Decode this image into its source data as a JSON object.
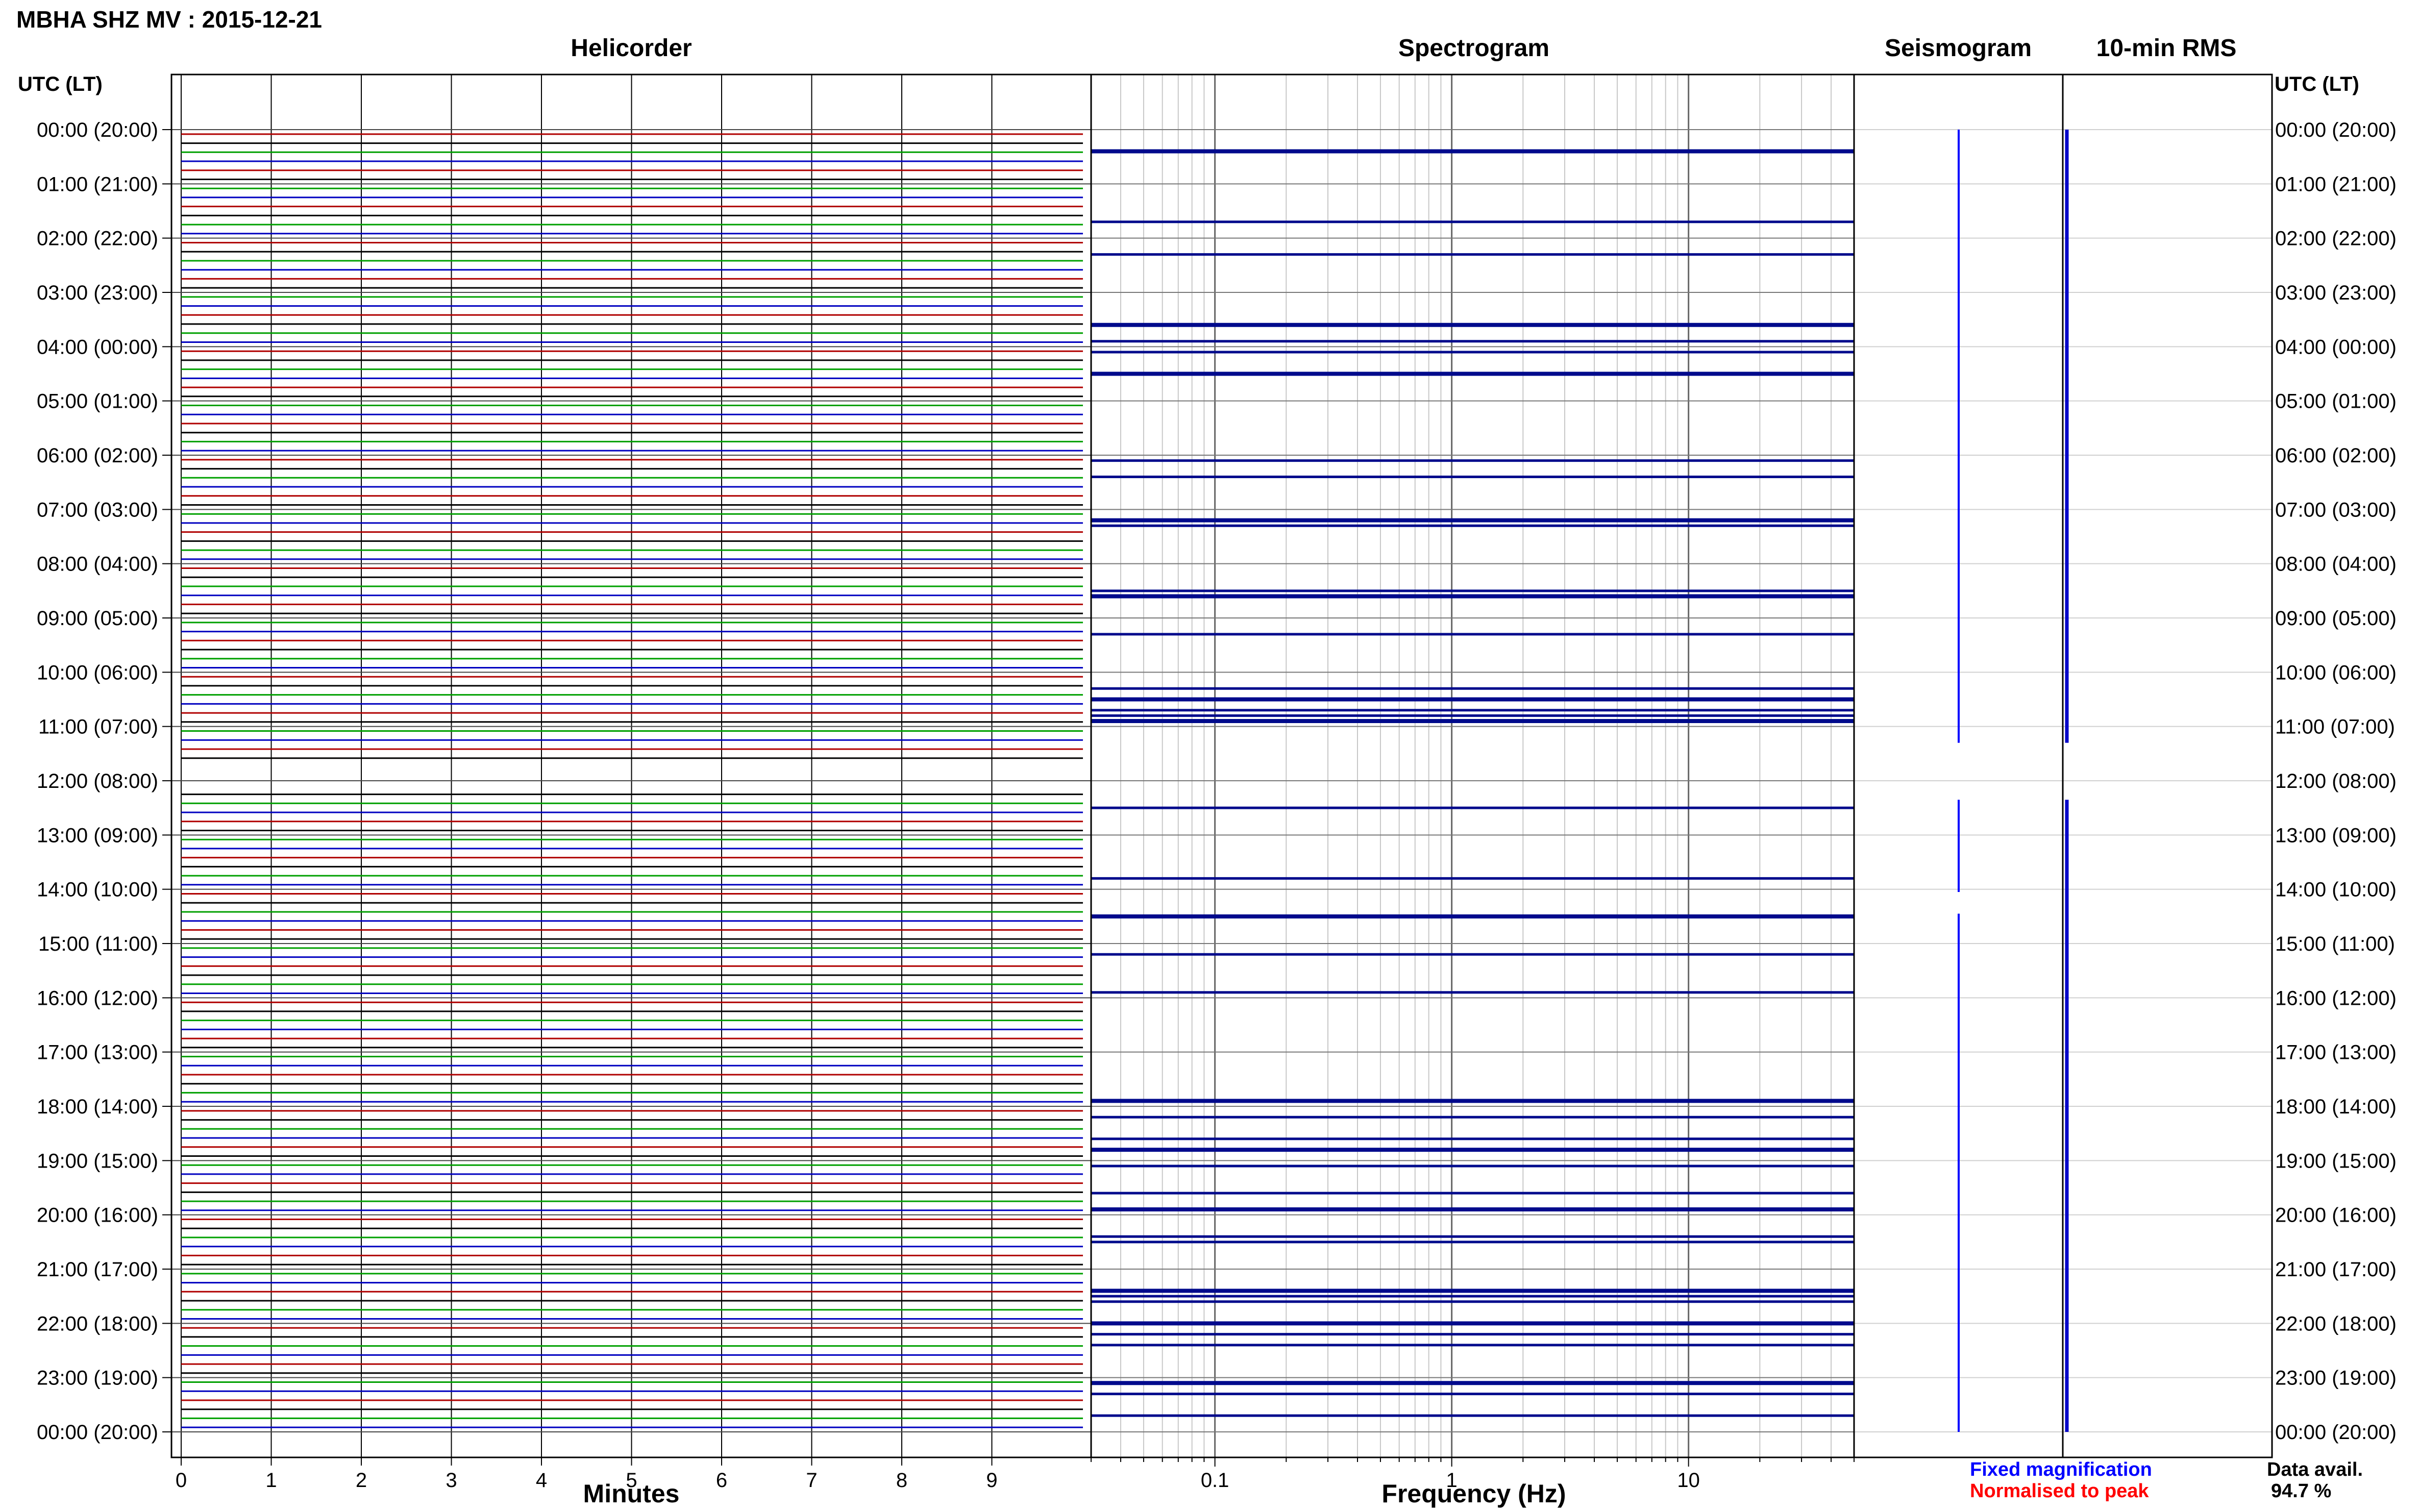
{
  "figure": {
    "title": "MBHA SHZ MV : 2015-12-21",
    "left_header": "UTC (LT)",
    "right_header": "UTC (LT)"
  },
  "panels": {
    "helicorder": "Helicorder",
    "spectrogram": "Spectrogram",
    "seismogram": "Seismogram",
    "rms": "10-min RMS"
  },
  "legend": {
    "fixed": "Fixed magnification",
    "normalised": "Normalised to peak",
    "fixed_color": "#0000ff",
    "normalised_color": "#ff0000"
  },
  "availability": {
    "label": "Data avail.",
    "value": "94.7 %"
  },
  "trace_colors": [
    "#b00000",
    "#000000",
    "#00a000",
    "#0000c0"
  ],
  "chart_data": [
    {
      "type": "line",
      "panel": "Helicorder",
      "xlabel": "Minutes",
      "x_ticks": [
        0,
        1,
        2,
        3,
        4,
        5,
        6,
        7,
        8,
        9
      ],
      "xlim": [
        0,
        10
      ],
      "y_ticks": [
        "00:00 (20:00)",
        "01:00 (21:00)",
        "02:00 (22:00)",
        "03:00 (23:00)",
        "04:00 (00:00)",
        "05:00 (01:00)",
        "06:00 (02:00)",
        "07:00 (03:00)",
        "08:00 (04:00)",
        "09:00 (05:00)",
        "10:00 (06:00)",
        "11:00 (07:00)",
        "12:00 (08:00)",
        "13:00 (09:00)",
        "14:00 (10:00)",
        "15:00 (11:00)",
        "16:00 (12:00)",
        "17:00 (13:00)",
        "18:00 (14:00)",
        "19:00 (15:00)",
        "20:00 (16:00)",
        "21:00 (17:00)",
        "22:00 (18:00)",
        "23:00 (19:00)",
        "00:00 (20:00)"
      ],
      "ylim_hours": [
        0,
        24
      ],
      "gap_hours": [
        11.6,
        12.25
      ]
    },
    {
      "type": "heatmap",
      "panel": "Spectrogram",
      "xlabel": "Frequency (Hz)",
      "x_scale": "log",
      "xlim": [
        0.03,
        50
      ],
      "x_ticks": [
        0.1,
        1,
        10
      ],
      "x_tick_labels": [
        "0.1",
        "1",
        "10"
      ],
      "bright_band_hours": [
        0.4,
        1.7,
        2.3,
        3.6,
        3.9,
        4.1,
        4.5,
        6.1,
        6.4,
        7.2,
        7.3,
        8.5,
        8.6,
        9.3,
        10.3,
        10.5,
        10.7,
        10.8,
        10.9,
        12.5,
        13.8,
        14.5,
        15.2,
        15.9,
        17.9,
        18.2,
        18.6,
        18.8,
        19.1,
        19.6,
        19.9,
        20.4,
        20.5,
        21.4,
        21.5,
        21.6,
        22.0,
        22.2,
        22.4,
        23.1,
        23.3,
        23.7
      ]
    },
    {
      "type": "line",
      "panel": "Seismogram",
      "ylim_hours": [
        0,
        24
      ],
      "trace_segments_hours": [
        [
          0.0,
          11.3
        ],
        [
          12.35,
          14.05
        ],
        [
          14.45,
          24.0
        ]
      ]
    },
    {
      "type": "line",
      "panel": "10-min RMS",
      "ylim_hours": [
        0,
        24
      ],
      "trace_segments_hours": [
        [
          0.0,
          11.3
        ],
        [
          12.35,
          24.0
        ]
      ]
    }
  ]
}
